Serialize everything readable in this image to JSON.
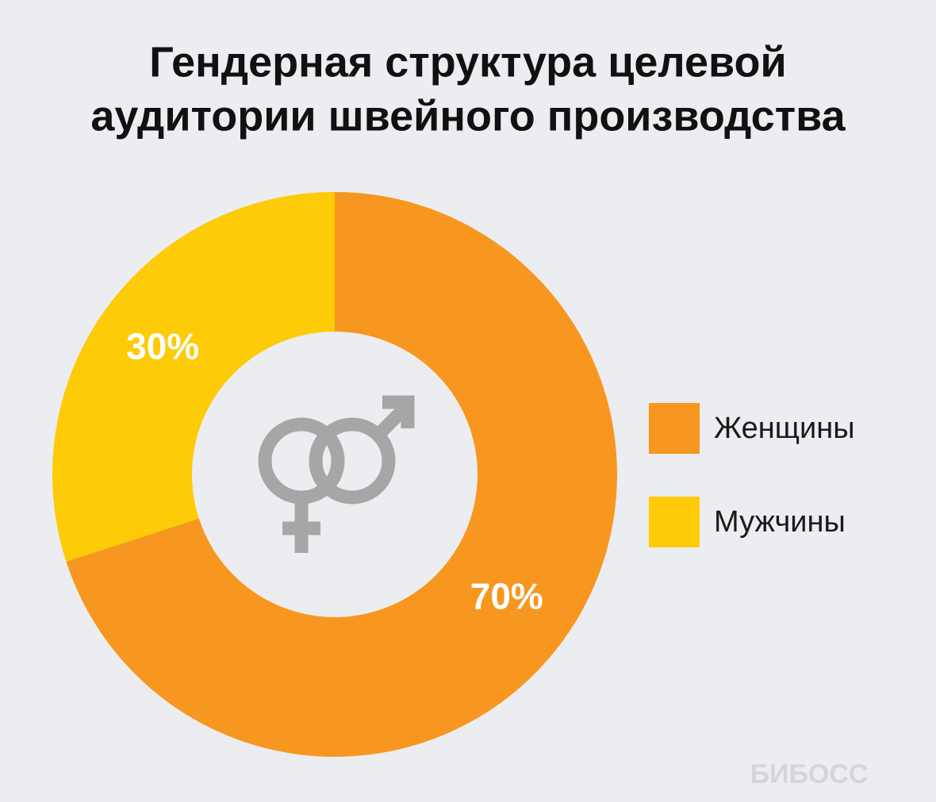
{
  "chart_data": {
    "type": "donut",
    "title": [
      "Гендерная структура целевой",
      "аудитории швейного производства"
    ],
    "categories": [
      "Женщины",
      "Мужчины"
    ],
    "values": [
      70,
      30
    ],
    "value_labels": [
      "70%",
      "30%"
    ],
    "colors": [
      "#f7971f",
      "#fdcb08"
    ],
    "watermark": "БИБОСС"
  }
}
